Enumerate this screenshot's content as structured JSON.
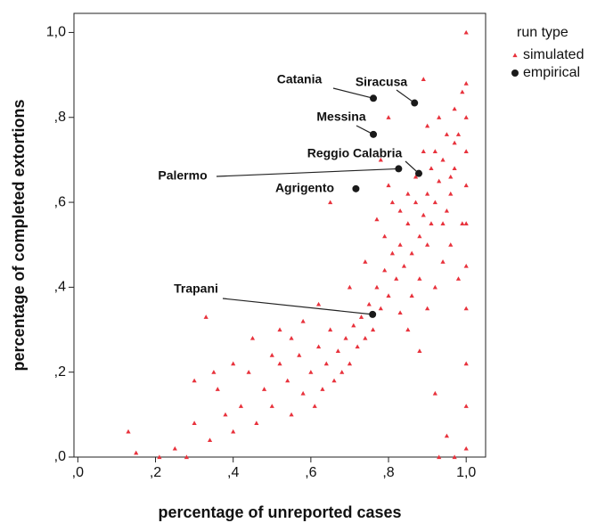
{
  "chart_data": {
    "type": "scatter",
    "x_label": "percentage of unreported cases",
    "y_label": "percentage of completed extortions",
    "legend_title": "run type",
    "legend_position": "right",
    "xlim": [
      -0.01,
      1.05
    ],
    "ylim": [
      0,
      1.045
    ],
    "xticks": [
      {
        "value": 0,
        "label": ",0"
      },
      {
        "value": 0.2,
        "label": ",2"
      },
      {
        "value": 0.4,
        "label": ",4"
      },
      {
        "value": 0.6,
        "label": ",6"
      },
      {
        "value": 0.8,
        "label": ",8"
      },
      {
        "value": 1.0,
        "label": "1,0"
      }
    ],
    "yticks": [
      {
        "value": 0,
        "label": ",0"
      },
      {
        "value": 0.2,
        "label": ",2"
      },
      {
        "value": 0.4,
        "label": ",4"
      },
      {
        "value": 0.6,
        "label": ",6"
      },
      {
        "value": 0.8,
        "label": ",8"
      },
      {
        "value": 1.0,
        "label": "1,0"
      }
    ],
    "series": [
      {
        "name": "simulated",
        "color": "#e8323c",
        "marker": "triangle",
        "x": [
          1.0,
          1.0,
          1.0,
          1.0,
          1.0,
          1.0,
          1.0,
          1.0,
          1.0,
          1.0,
          1.0,
          0.98,
          0.97,
          0.96,
          0.95,
          0.94,
          0.93,
          0.92,
          0.91,
          0.9,
          0.89,
          0.88,
          0.87,
          0.86,
          0.85,
          0.84,
          0.83,
          0.82,
          0.81,
          0.8,
          0.79,
          0.78,
          0.77,
          0.76,
          0.75,
          0.74,
          0.73,
          0.72,
          0.71,
          0.7,
          0.69,
          0.68,
          0.67,
          0.66,
          0.65,
          0.64,
          0.63,
          0.62,
          0.61,
          0.6,
          0.58,
          0.57,
          0.55,
          0.54,
          0.52,
          0.5,
          0.48,
          0.46,
          0.44,
          0.42,
          0.4,
          0.38,
          0.36,
          0.34,
          0.33,
          0.3,
          0.28,
          0.25,
          0.21,
          0.13,
          0.15,
          0.9,
          0.93,
          0.95,
          0.97,
          0.99,
          0.96,
          0.94,
          0.92,
          0.9,
          0.88,
          0.98,
          0.99,
          0.91,
          0.89,
          0.87,
          0.85,
          0.83,
          0.81,
          0.79,
          0.77,
          0.8,
          0.78,
          0.89,
          0.8,
          0.65,
          0.74,
          0.7,
          0.62,
          0.58,
          0.55,
          0.52,
          0.5,
          0.45,
          0.4,
          0.35,
          0.3,
          0.85,
          0.88,
          0.92,
          0.95,
          0.93,
          0.97,
          0.86,
          0.83,
          0.94,
          0.96,
          0.92,
          0.97,
          0.9
        ],
        "values": [
          1.0,
          0.88,
          0.8,
          0.72,
          0.64,
          0.55,
          0.45,
          0.35,
          0.22,
          0.12,
          0.02,
          0.76,
          0.68,
          0.62,
          0.58,
          0.7,
          0.65,
          0.6,
          0.55,
          0.62,
          0.57,
          0.52,
          0.6,
          0.48,
          0.55,
          0.45,
          0.5,
          0.42,
          0.48,
          0.38,
          0.44,
          0.35,
          0.4,
          0.3,
          0.36,
          0.28,
          0.33,
          0.26,
          0.31,
          0.22,
          0.28,
          0.2,
          0.25,
          0.18,
          0.3,
          0.22,
          0.16,
          0.26,
          0.12,
          0.2,
          0.15,
          0.24,
          0.1,
          0.18,
          0.22,
          0.12,
          0.16,
          0.08,
          0.2,
          0.12,
          0.06,
          0.1,
          0.16,
          0.04,
          0.33,
          0.08,
          0.0,
          0.02,
          0.0,
          0.06,
          0.01,
          0.78,
          0.8,
          0.76,
          0.82,
          0.86,
          0.5,
          0.46,
          0.4,
          0.35,
          0.42,
          0.42,
          0.55,
          0.68,
          0.72,
          0.66,
          0.62,
          0.58,
          0.6,
          0.52,
          0.56,
          0.64,
          0.7,
          0.89,
          0.8,
          0.6,
          0.46,
          0.4,
          0.36,
          0.32,
          0.28,
          0.3,
          0.24,
          0.28,
          0.22,
          0.2,
          0.18,
          0.3,
          0.25,
          0.15,
          0.05,
          0.0,
          0.0,
          0.38,
          0.34,
          0.55,
          0.66,
          0.72,
          0.74,
          0.5
        ]
      },
      {
        "name": "empirical",
        "color": "#1a1a1a",
        "marker": "circle",
        "labels": [
          "Catania",
          "Siracusa",
          "Messina",
          "Reggio Calabria",
          "Palermo",
          "Agrigento",
          "Trapani"
        ],
        "x": [
          0.761,
          0.867,
          0.761,
          0.878,
          0.826,
          0.716,
          0.759
        ],
        "values": [
          0.845,
          0.834,
          0.76,
          0.668,
          0.679,
          0.632,
          0.336
        ]
      }
    ]
  }
}
